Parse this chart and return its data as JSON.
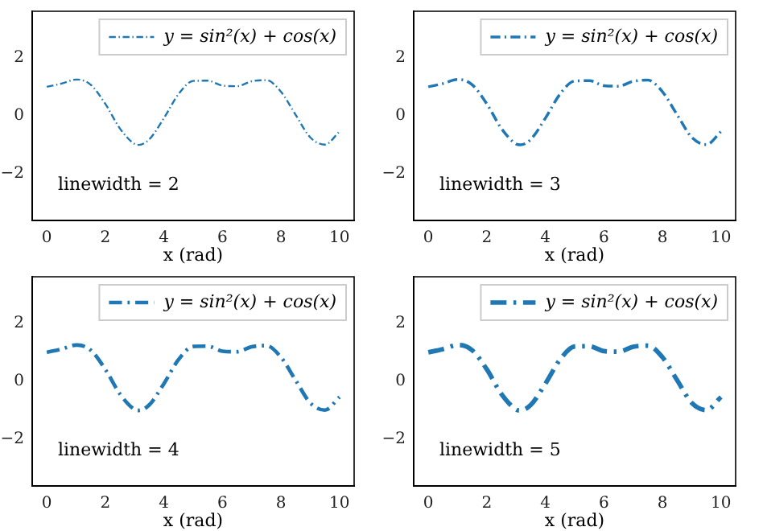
{
  "chart_data": [
    {
      "type": "line",
      "xlabel": "x (rad)",
      "legend": "top right",
      "grid": false,
      "line_style": "dashed",
      "marker": "none",
      "xlim": [
        -0.5,
        10.5
      ],
      "ylim": [
        -3.6,
        3.6
      ],
      "xticks": [
        0,
        2,
        4,
        6,
        8,
        10
      ],
      "yticks": [
        -2,
        0,
        2
      ],
      "annotations": [
        "linewidth = 2"
      ],
      "series": [
        {
          "name": "y = sin²(x) + cos(x)",
          "color": "#1f77b4",
          "x": [
            0,
            0.5,
            1,
            1.05,
            1.5,
            2,
            2.5,
            3,
            3.14,
            3.5,
            4,
            4.5,
            5,
            5.5,
            6,
            6.5,
            7,
            7.5,
            8,
            8.5,
            9,
            9.5,
            10
          ],
          "values": [
            1,
            1.11,
            1.25,
            1.25,
            1.07,
            0.41,
            -0.44,
            -0.97,
            -1,
            -0.81,
            -0.08,
            0.75,
            1.2,
            1.21,
            1.04,
            1.02,
            1.19,
            1.23,
            0.83,
            0.04,
            -0.74,
            -0.99,
            -0.54
          ]
        }
      ]
    },
    {
      "type": "line",
      "xlabel": "x (rad)",
      "legend": "top right",
      "grid": false,
      "line_style": "dashed",
      "marker": "none",
      "xlim": [
        -0.5,
        10.5
      ],
      "ylim": [
        -3.6,
        3.6
      ],
      "xticks": [
        0,
        2,
        4,
        6,
        8,
        10
      ],
      "yticks": [
        -2,
        0,
        2
      ],
      "annotations": [
        "linewidth = 3"
      ],
      "series": [
        {
          "name": "y = sin²(x) + cos(x)",
          "color": "#1f77b4",
          "x": [
            0,
            0.5,
            1,
            1.05,
            1.5,
            2,
            2.5,
            3,
            3.14,
            3.5,
            4,
            4.5,
            5,
            5.5,
            6,
            6.5,
            7,
            7.5,
            8,
            8.5,
            9,
            9.5,
            10
          ],
          "values": [
            1,
            1.11,
            1.25,
            1.25,
            1.07,
            0.41,
            -0.44,
            -0.97,
            -1,
            -0.81,
            -0.08,
            0.75,
            1.2,
            1.21,
            1.04,
            1.02,
            1.19,
            1.23,
            0.83,
            0.04,
            -0.74,
            -0.99,
            -0.54
          ]
        }
      ]
    },
    {
      "type": "line",
      "xlabel": "x (rad)",
      "legend": "top right",
      "grid": false,
      "line_style": "dashed",
      "marker": "none",
      "xlim": [
        -0.5,
        10.5
      ],
      "ylim": [
        -3.6,
        3.6
      ],
      "xticks": [
        0,
        2,
        4,
        6,
        8,
        10
      ],
      "yticks": [
        -2,
        0,
        2
      ],
      "annotations": [
        "linewidth = 4"
      ],
      "series": [
        {
          "name": "y = sin²(x) + cos(x)",
          "color": "#1f77b4",
          "x": [
            0,
            0.5,
            1,
            1.05,
            1.5,
            2,
            2.5,
            3,
            3.14,
            3.5,
            4,
            4.5,
            5,
            5.5,
            6,
            6.5,
            7,
            7.5,
            8,
            8.5,
            9,
            9.5,
            10
          ],
          "values": [
            1,
            1.11,
            1.25,
            1.25,
            1.07,
            0.41,
            -0.44,
            -0.97,
            -1,
            -0.81,
            -0.08,
            0.75,
            1.2,
            1.21,
            1.04,
            1.02,
            1.19,
            1.23,
            0.83,
            0.04,
            -0.74,
            -0.99,
            -0.54
          ]
        }
      ]
    },
    {
      "type": "line",
      "xlabel": "x (rad)",
      "legend": "top right",
      "grid": false,
      "line_style": "dashed",
      "marker": "none",
      "xlim": [
        -0.5,
        10.5
      ],
      "ylim": [
        -3.6,
        3.6
      ],
      "xticks": [
        0,
        2,
        4,
        6,
        8,
        10
      ],
      "yticks": [
        -2,
        0,
        2
      ],
      "annotations": [
        "linewidth = 5"
      ],
      "series": [
        {
          "name": "y = sin²(x) + cos(x)",
          "color": "#1f77b4",
          "x": [
            0,
            0.5,
            1,
            1.05,
            1.5,
            2,
            2.5,
            3,
            3.14,
            3.5,
            4,
            4.5,
            5,
            5.5,
            6,
            6.5,
            7,
            7.5,
            8,
            8.5,
            9,
            9.5,
            10
          ],
          "values": [
            1,
            1.11,
            1.25,
            1.25,
            1.07,
            0.41,
            -0.44,
            -0.97,
            -1,
            -0.81,
            -0.08,
            0.75,
            1.2,
            1.21,
            1.04,
            1.02,
            1.19,
            1.23,
            0.83,
            0.04,
            -0.74,
            -0.99,
            -0.54
          ]
        }
      ]
    }
  ]
}
